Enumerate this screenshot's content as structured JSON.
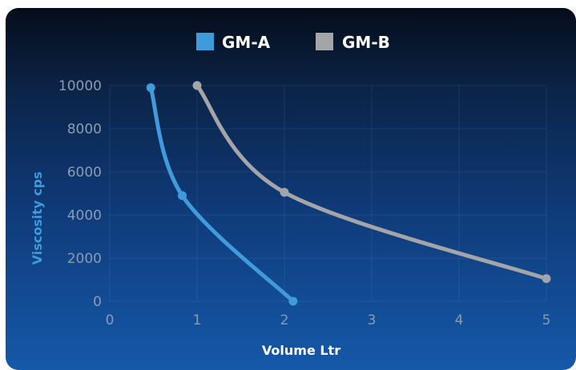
{
  "chart_data": {
    "type": "line",
    "xlabel": "Volume Ltr",
    "ylabel": "Viscosity cps",
    "xlim": [
      0,
      5
    ],
    "ylim": [
      0,
      10000
    ],
    "x_ticks": [
      "0",
      "1",
      "2",
      "3",
      "4",
      "5"
    ],
    "y_ticks": [
      "0",
      "2000",
      "4000",
      "6000",
      "8000",
      "10000"
    ],
    "grid": true,
    "legend_position": "top-center",
    "series": [
      {
        "name": "GM-A",
        "color": "#3f9bdb",
        "points": [
          [
            0.47,
            9900
          ],
          [
            0.83,
            4900
          ],
          [
            2.1,
            0
          ]
        ]
      },
      {
        "name": "GM-B",
        "color": "#a3a5a8",
        "points": [
          [
            1.0,
            10000
          ],
          [
            2.0,
            5050
          ],
          [
            5.0,
            1050
          ]
        ]
      }
    ]
  }
}
